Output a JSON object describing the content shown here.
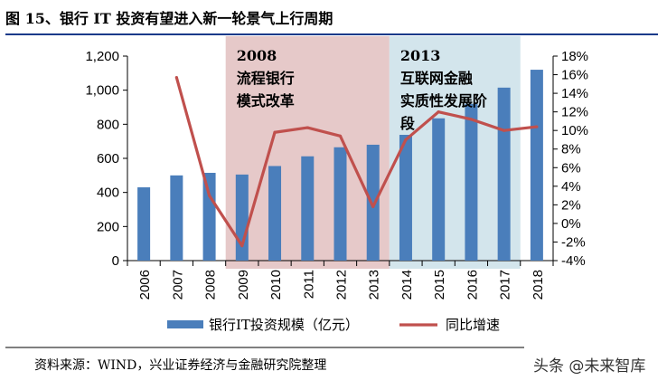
{
  "figure": {
    "title": "图 15、银行 IT 投资有望进入新一轮景气上行周期",
    "source": "资料来源：WIND，兴业证券经济与金融研究院整理",
    "watermark": "头条 @未来智库"
  },
  "colors": {
    "title_rule": "#1a3a8a",
    "bar": "#4a7ebb",
    "line": "#c0504d",
    "band_2008": "#e6c9c9",
    "band_2013": "#d3e5ec"
  },
  "annotations": [
    {
      "year_label": "2008",
      "lines": [
        "流程银行",
        "模式改革"
      ]
    },
    {
      "year_label": "2013",
      "lines": [
        "互联网金融",
        "实质性发展阶",
        "段"
      ]
    }
  ],
  "chart_data": {
    "type": "bar",
    "categories": [
      "2006",
      "2007",
      "2008",
      "2009",
      "2010",
      "2011",
      "2012",
      "2013",
      "2014",
      "2015",
      "2016",
      "2017",
      "2018"
    ],
    "series": [
      {
        "name": "银行IT投资规模（亿元）",
        "type": "bar",
        "axis": "left",
        "values": [
          430,
          500,
          515,
          505,
          555,
          612,
          665,
          680,
          738,
          835,
          920,
          1015,
          1120
        ]
      },
      {
        "name": "同比增速",
        "type": "line",
        "axis": "right",
        "values": [
          null,
          15.7,
          3.0,
          -2.4,
          9.8,
          10.3,
          9.4,
          1.8,
          9.0,
          12.0,
          11.2,
          10.0,
          10.4
        ]
      }
    ],
    "y_left": {
      "ylim": [
        0,
        1200
      ],
      "ticks": [
        "0",
        "200",
        "400",
        "600",
        "800",
        "1,000",
        "1,200"
      ],
      "tick_values": [
        0,
        200,
        400,
        600,
        800,
        1000,
        1200
      ]
    },
    "y_right": {
      "ylim": [
        -4,
        18
      ],
      "ticks": [
        "-4%",
        "-2%",
        "0%",
        "2%",
        "4%",
        "6%",
        "8%",
        "10%",
        "12%",
        "14%",
        "16%",
        "18%"
      ],
      "tick_values": [
        -4,
        -2,
        0,
        2,
        4,
        6,
        8,
        10,
        12,
        14,
        16,
        18
      ]
    },
    "shaded_periods": [
      {
        "label": "2008",
        "from": "2009",
        "to": "2013"
      },
      {
        "label": "2013",
        "from": "2014",
        "to": "2017"
      }
    ],
    "legend": [
      "银行IT投资规模（亿元）",
      "同比增速"
    ],
    "legend_position": "bottom",
    "grid": false
  }
}
